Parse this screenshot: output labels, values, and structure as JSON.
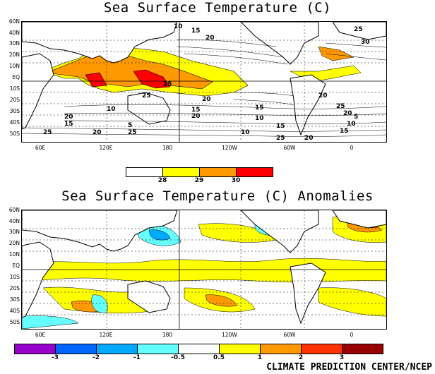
{
  "top_map": {
    "title": "Sea Surface Temperature (C)",
    "lat_labels": [
      "60N",
      "40N",
      "30N",
      "20N",
      "10N",
      "EQ",
      "10S",
      "20S",
      "30S",
      "40S",
      "50S"
    ],
    "lon_labels": [
      "60E",
      "120E",
      "180",
      "120W",
      "60W",
      "0"
    ],
    "contour_labels": [
      "10",
      "15",
      "20",
      "25",
      "30",
      "25",
      "20",
      "15",
      "10",
      "5",
      "25",
      "20",
      "25",
      "20",
      "15",
      "10",
      "15",
      "20",
      "25",
      "20",
      "25",
      "10",
      "15",
      "20",
      "25",
      "20",
      "15",
      "10",
      "5"
    ],
    "legend": {
      "labels": [
        "28",
        "29",
        "30"
      ],
      "colors": [
        "#ffffff",
        "#ffff00",
        "#ff9900",
        "#ff0000"
      ]
    }
  },
  "bottom_map": {
    "title": "Sea Surface Temperature (C) Anomalies",
    "lat_labels": [
      "60N",
      "40N",
      "30N",
      "20N",
      "10N",
      "EQ",
      "10S",
      "20S",
      "30S",
      "40S",
      "50S"
    ],
    "lon_labels": [
      "60E",
      "120E",
      "180",
      "120W",
      "60W",
      "0"
    ],
    "legend": {
      "labels": [
        "-3",
        "-2",
        "-1",
        "-0.5",
        "0.5",
        "1",
        "2",
        "3"
      ],
      "colors": [
        "#9900cc",
        "#0066ff",
        "#00aaff",
        "#66ffff",
        "#ffffff",
        "#ffff00",
        "#ff9900",
        "#ff3300",
        "#990000"
      ]
    }
  },
  "credit": "CLIMATE PREDICTION CENTER/NCEP"
}
